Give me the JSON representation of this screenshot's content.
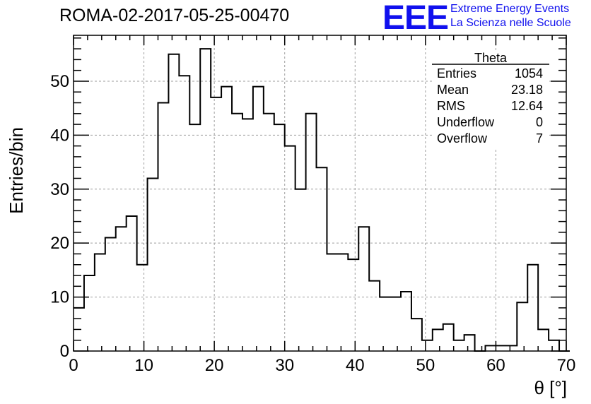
{
  "chart_data": {
    "type": "bar",
    "style": "step-histogram",
    "title": "ROMA-02-2017-05-25-00470",
    "xlabel": "θ [°]",
    "ylabel": "Entries/bin",
    "xlim": [
      0,
      70
    ],
    "ylim": [
      0,
      58.5
    ],
    "xticks": [
      "0",
      "10",
      "20",
      "30",
      "40",
      "50",
      "60",
      "70"
    ],
    "yticks": [
      "0",
      "10",
      "20",
      "30",
      "40",
      "50"
    ],
    "grid": true,
    "bin_width": 1.5,
    "bin_edges_start": 0,
    "values": [
      8,
      14,
      18,
      21,
      23,
      25,
      16,
      32,
      46,
      55,
      51,
      42,
      56,
      47,
      49,
      44,
      43,
      49,
      44,
      42,
      38,
      30,
      44,
      34,
      18,
      18,
      17,
      23,
      13,
      10,
      10,
      11,
      6,
      2,
      4,
      5,
      2,
      3,
      0,
      1,
      1,
      1,
      9,
      16,
      4,
      2,
      0
    ],
    "stats_box": {
      "title": "Theta",
      "rows": [
        {
          "label": "Entries",
          "value": "1054"
        },
        {
          "label": "Mean",
          "value": "23.18"
        },
        {
          "label": "RMS",
          "value": "12.64"
        },
        {
          "label": "Underflow",
          "value": "0"
        },
        {
          "label": "Overflow",
          "value": "7"
        }
      ],
      "placement": "top-right"
    },
    "colors": {
      "line": "#000000",
      "grid": "#9e9e9e"
    }
  },
  "logo": {
    "mark": "EEE",
    "line1": "Extreme Energy Events",
    "line2": "La Scienza nelle Scuole",
    "color": "#1010ee"
  }
}
